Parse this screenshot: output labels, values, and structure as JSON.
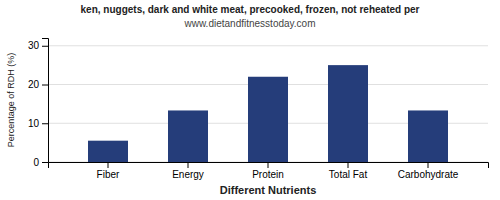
{
  "chart_data": {
    "type": "bar",
    "title": "ken, nuggets, dark and white meat, precooked, frozen, not reheated per",
    "subtitle": "www.dietandfitnesstoday.com",
    "categories": [
      "Fiber",
      "Energy",
      "Protein",
      "Total Fat",
      "Carbohydrate"
    ],
    "values": [
      5.5,
      13.3,
      22.0,
      25.0,
      13.3
    ],
    "color": "#253d7a",
    "xlabel": "Different Nutrients",
    "ylabel": "Percentage of RDH (%)",
    "ylim": [
      0,
      32
    ],
    "yticks": [
      0,
      10,
      20,
      30
    ],
    "grid": true
  }
}
